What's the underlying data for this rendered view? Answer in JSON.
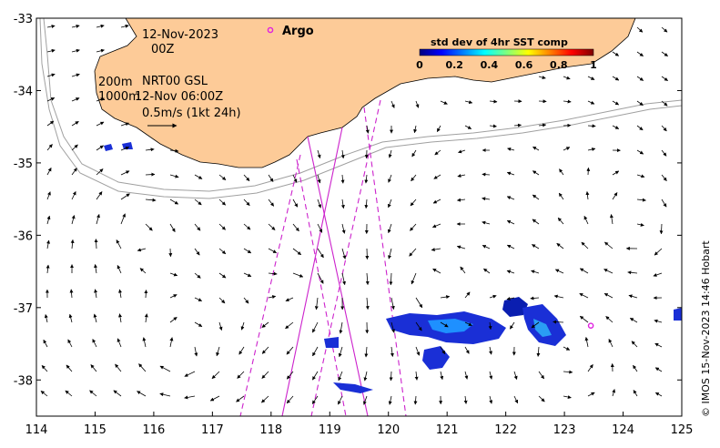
{
  "map": {
    "date": "12-Nov-2023",
    "hour": "00Z",
    "contour_200_label": "200m",
    "contour_1000_label": "1000m",
    "product": "NRT00 GSL",
    "product_time": "12-Nov 06:00Z",
    "scale_label": "0.5m/s (1kt 24h)",
    "argo_label": "Argo",
    "credit": "© IMOS 15-Nov-2023 14:46 Hobart",
    "colors": {
      "land": "#fdcb98",
      "argo": "#e020e0",
      "track": "#cc22cc"
    }
  },
  "axes": {
    "lon_ticks": [
      "114",
      "115",
      "116",
      "117",
      "118",
      "119",
      "120",
      "121",
      "122",
      "123",
      "124",
      "125"
    ],
    "lat_ticks": [
      "-33",
      "-34",
      "-35",
      "-36",
      "-37",
      "-38"
    ],
    "lon_range": [
      114,
      125
    ],
    "lat_range": [
      -38.5,
      -33
    ]
  },
  "colorbar": {
    "title": "std dev of 4hr SST comp",
    "ticks": [
      "0",
      "0.2",
      "0.4",
      "0.6",
      "0.8",
      "1"
    ],
    "range": [
      0,
      1
    ],
    "colormap": "jet"
  },
  "argo_float": {
    "lon": 118.0,
    "lat": -33.17
  },
  "argo_float_2": {
    "lon": 123.45,
    "lat": -37.25
  }
}
